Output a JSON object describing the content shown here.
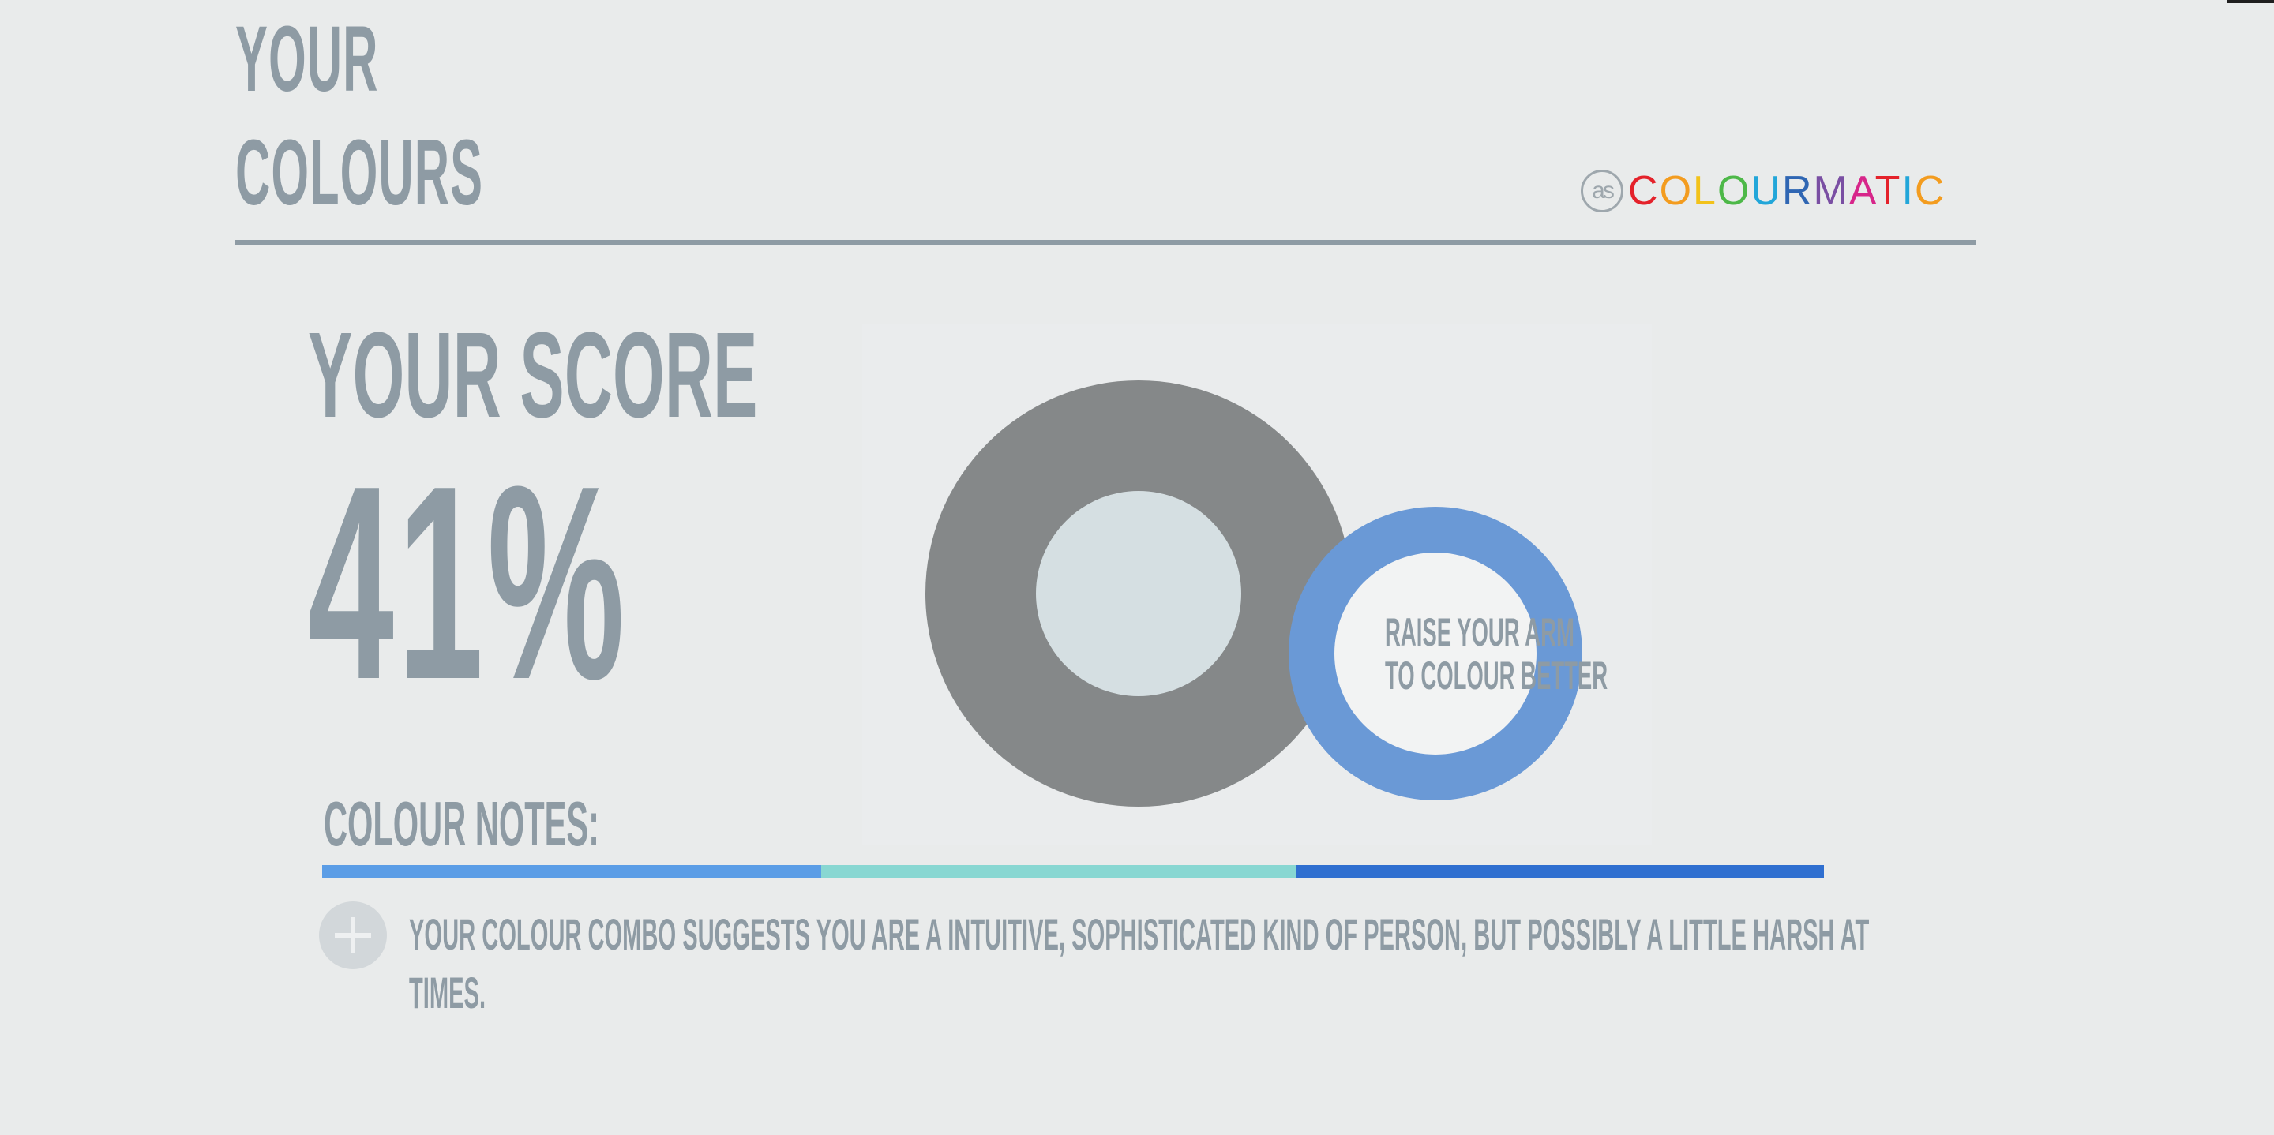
{
  "header": {
    "title_line_1": "YOUR",
    "title_line_2": "COLOURS",
    "brand": {
      "badge": "as",
      "word": "COLOURMATIC",
      "letter_colors": [
        "#e4222b",
        "#f39c1f",
        "#f2c21a",
        "#4db848",
        "#22a6d9",
        "#2f66b3",
        "#7a4fa3",
        "#d7268a",
        "#e4222b",
        "#22a6d9",
        "#f39c1f"
      ]
    }
  },
  "score": {
    "label": "YOUR SCORE",
    "value": "41%"
  },
  "colour_swatch": {
    "outer_color": "#858889",
    "inner_color": "#d5dfe2"
  },
  "prompt_circle": {
    "line_1": "RAISE YOUR ARM",
    "line_2": "TO COLOUR BETTER",
    "ring_color": "#6a99d6",
    "center_color": "#f2f3f3"
  },
  "notes": {
    "label": "COLOUR NOTES:",
    "stripes": [
      "#5b9de6",
      "#88d7d2",
      "#2f6fd0"
    ],
    "text_line_1": "YOUR COLOUR COMBO SUGGESTS YOU ARE A INTUITIVE, SOPHISTICATED KIND OF PERSON, BUT POSSIBLY A LITTLE HARSH AT",
    "text_line_2": "TIMES."
  }
}
